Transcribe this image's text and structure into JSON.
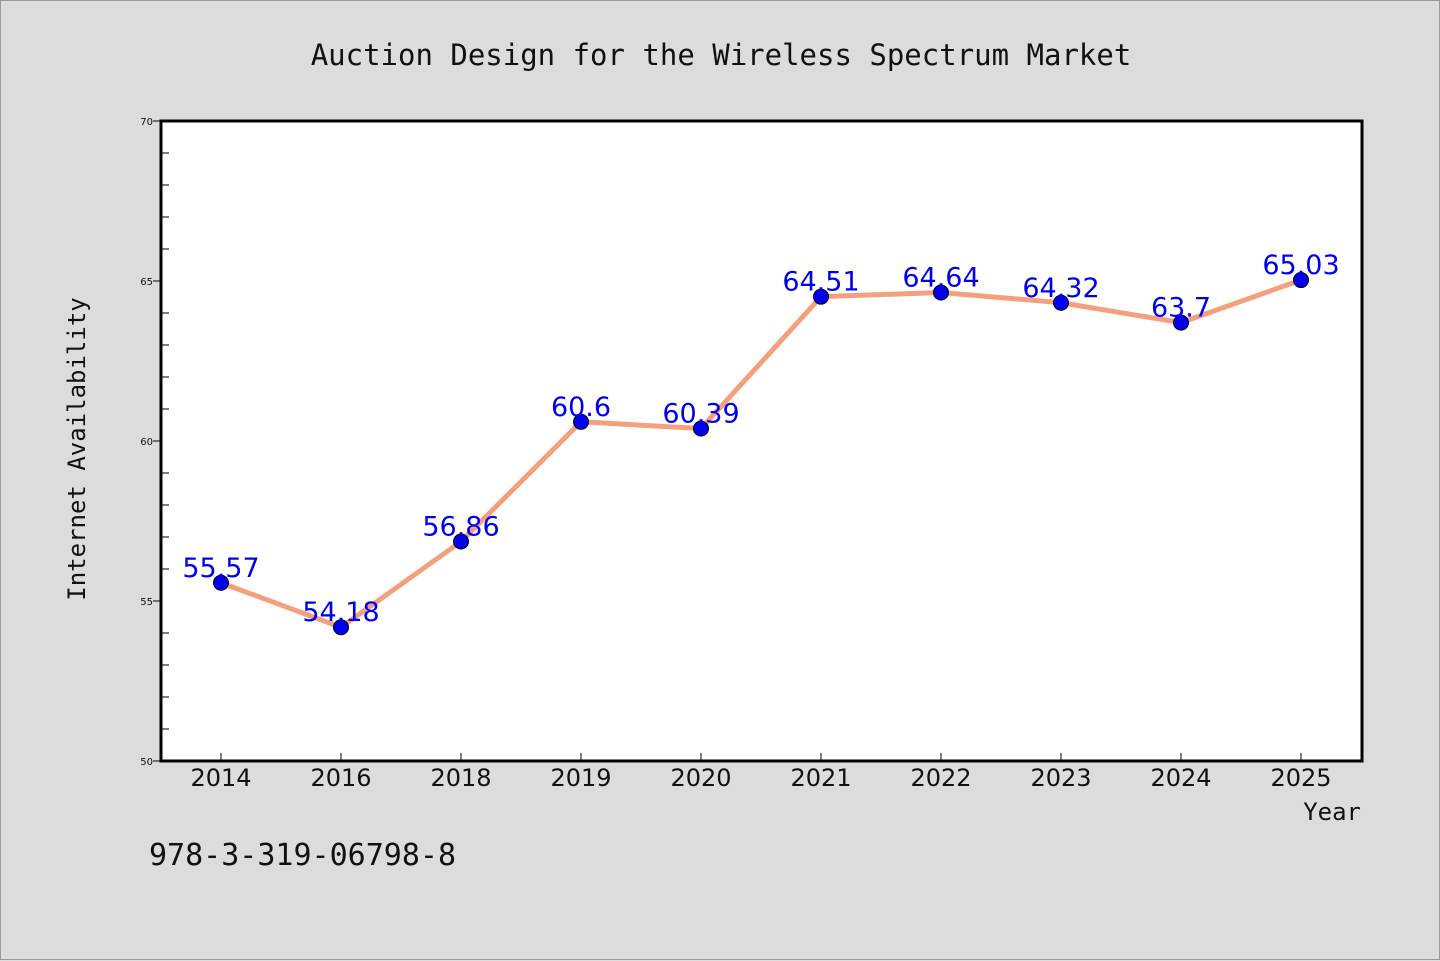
{
  "chart_data": {
    "type": "line",
    "title": "Auction Design for the Wireless Spectrum Market",
    "xlabel": "Year",
    "ylabel": "Internet Availability",
    "categories": [
      "2014",
      "2016",
      "2018",
      "2019",
      "2020",
      "2021",
      "2022",
      "2023",
      "2024",
      "2025"
    ],
    "series": [
      {
        "values": [
          55.57,
          54.18,
          56.86,
          60.6,
          60.39,
          64.51,
          64.64,
          64.32,
          63.7,
          65.03
        ],
        "labels": [
          "55.57",
          "54.18",
          "56.86",
          "60.6",
          "60.39",
          "64.51",
          "64.64",
          "64.32",
          "63.7",
          "65.03"
        ],
        "line_color": "#f4a07e",
        "marker_color": "#0000ee",
        "label_color": "#0000ee"
      }
    ],
    "ylim": [
      50,
      70
    ],
    "yticks": [
      "50",
      "55",
      "60",
      "65",
      "70"
    ],
    "grid": false,
    "legend": "none"
  },
  "footer": {
    "isbn": "978-3-319-06798-8"
  }
}
